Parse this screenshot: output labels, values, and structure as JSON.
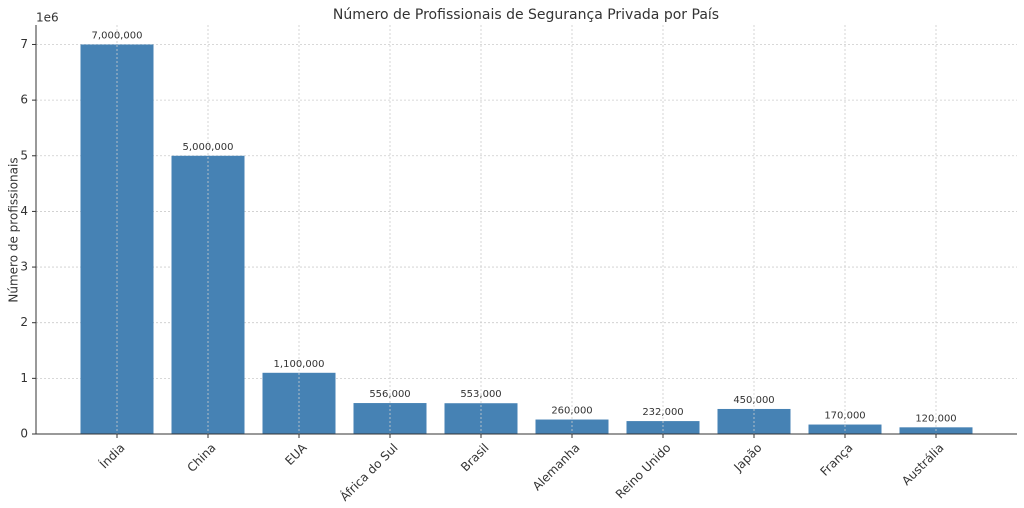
{
  "chart_data": {
    "type": "bar",
    "title": "Número de Profissionais de Segurança Privada por País",
    "y_label": "Número de profissionais",
    "y_offset_label": "1e6",
    "categories": [
      "Índia",
      "China",
      "EUA",
      "África do Sul",
      "Brasil",
      "Alemanha",
      "Reino Unido",
      "Japão",
      "França",
      "Austrália"
    ],
    "values": [
      7000000,
      5000000,
      1100000,
      556000,
      553000,
      260000,
      232000,
      450000,
      170000,
      120000
    ],
    "value_labels": [
      "7,000,000",
      "5,000,000",
      "1,100,000",
      "556,000",
      "553,000",
      "260,000",
      "232,000",
      "450,000",
      "170,000",
      "120,000"
    ],
    "color": "#4682b4",
    "ylim": [
      0,
      7350000
    ],
    "yticks": [
      {
        "value": 0,
        "label": "0"
      },
      {
        "value": 1000000,
        "label": "1"
      },
      {
        "value": 2000000,
        "label": "2"
      },
      {
        "value": 3000000,
        "label": "3"
      },
      {
        "value": 4000000,
        "label": "4"
      },
      {
        "value": 5000000,
        "label": "5"
      },
      {
        "value": 6000000,
        "label": "6"
      },
      {
        "value": 7000000,
        "label": "7"
      }
    ],
    "grid": true
  }
}
